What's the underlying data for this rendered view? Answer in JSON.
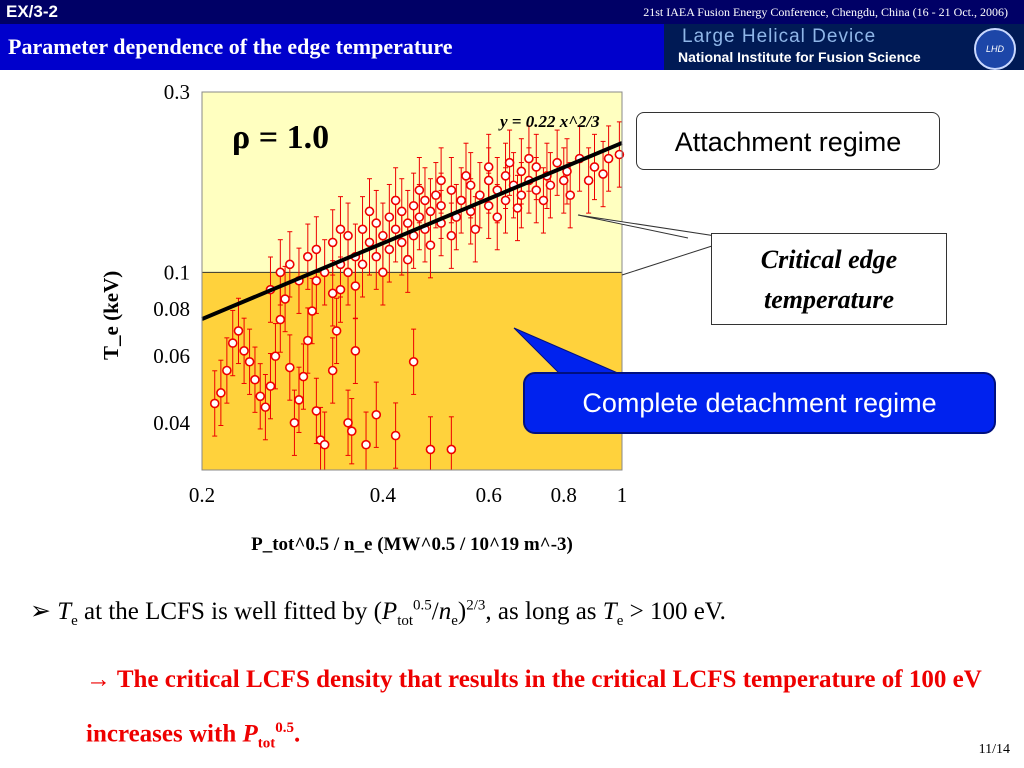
{
  "header": {
    "slide_id": "EX/3-2",
    "conference": "21st IAEA Fusion Energy Conference, Chengdu, China (16 - 21 Oct., 2006)",
    "title": "Parameter dependence of the edge temperature",
    "logo_line1": "Large Helical Device",
    "logo_line2": "National Institute for Fusion Science"
  },
  "colors": {
    "header_bar": "#000066",
    "title_bar": "#0000cc",
    "attachment_zone": "#ffffc0",
    "detachment_zone": "#ffd23c",
    "data_points": "#ee0000",
    "fit_line": "#000000",
    "callout_blue": "#0022ee"
  },
  "chart_data": {
    "type": "scatter",
    "x_scale": "log",
    "y_scale": "log",
    "xlim": [
      0.2,
      1.0
    ],
    "ylim": [
      0.03,
      0.3
    ],
    "x_ticks": [
      0.2,
      0.4,
      0.6,
      0.8,
      1
    ],
    "x_tick_labels": [
      "0.2",
      "0.4",
      "0.6",
      "0.8",
      "1"
    ],
    "y_ticks": [
      0.04,
      0.06,
      0.08,
      0.1,
      0.3
    ],
    "y_tick_labels": [
      "0.04",
      "0.06",
      "0.08",
      "0.1",
      "0.3"
    ],
    "xlabel": "P_tot^0.5 / n_e (MW^0.5 / 10^19 m^-3)",
    "ylabel": "T_e (keV)",
    "rho_label": "ρ = 1.0",
    "fit_label": "y = 0.22 x^2/3",
    "fit": {
      "coefficient": 0.22,
      "exponent": 0.6667
    },
    "threshold_y": 0.1,
    "points": [
      [
        0.21,
        0.045
      ],
      [
        0.215,
        0.048
      ],
      [
        0.22,
        0.055
      ],
      [
        0.225,
        0.065
      ],
      [
        0.23,
        0.07
      ],
      [
        0.235,
        0.062
      ],
      [
        0.24,
        0.058
      ],
      [
        0.245,
        0.052
      ],
      [
        0.25,
        0.047
      ],
      [
        0.255,
        0.044
      ],
      [
        0.26,
        0.05
      ],
      [
        0.265,
        0.06
      ],
      [
        0.27,
        0.075
      ],
      [
        0.275,
        0.085
      ],
      [
        0.28,
        0.056
      ],
      [
        0.285,
        0.04
      ],
      [
        0.29,
        0.046
      ],
      [
        0.295,
        0.053
      ],
      [
        0.3,
        0.066
      ],
      [
        0.305,
        0.079
      ],
      [
        0.31,
        0.043
      ],
      [
        0.315,
        0.036
      ],
      [
        0.32,
        0.035
      ],
      [
        0.33,
        0.055
      ],
      [
        0.335,
        0.07
      ],
      [
        0.34,
        0.09
      ],
      [
        0.35,
        0.04
      ],
      [
        0.355,
        0.038
      ],
      [
        0.36,
        0.062
      ],
      [
        0.375,
        0.035
      ],
      [
        0.39,
        0.042
      ],
      [
        0.42,
        0.037
      ],
      [
        0.45,
        0.058
      ],
      [
        0.48,
        0.034
      ],
      [
        0.52,
        0.034
      ],
      [
        0.26,
        0.09
      ],
      [
        0.27,
        0.1
      ],
      [
        0.28,
        0.105
      ],
      [
        0.29,
        0.095
      ],
      [
        0.3,
        0.11
      ],
      [
        0.31,
        0.115
      ],
      [
        0.32,
        0.1
      ],
      [
        0.33,
        0.12
      ],
      [
        0.34,
        0.105
      ],
      [
        0.35,
        0.125
      ],
      [
        0.36,
        0.11
      ],
      [
        0.37,
        0.13
      ],
      [
        0.38,
        0.12
      ],
      [
        0.39,
        0.135
      ],
      [
        0.4,
        0.125
      ],
      [
        0.41,
        0.14
      ],
      [
        0.42,
        0.13
      ],
      [
        0.43,
        0.145
      ],
      [
        0.44,
        0.135
      ],
      [
        0.45,
        0.15
      ],
      [
        0.46,
        0.14
      ],
      [
        0.47,
        0.155
      ],
      [
        0.48,
        0.145
      ],
      [
        0.49,
        0.16
      ],
      [
        0.5,
        0.15
      ],
      [
        0.52,
        0.165
      ],
      [
        0.54,
        0.155
      ],
      [
        0.56,
        0.17
      ],
      [
        0.58,
        0.16
      ],
      [
        0.6,
        0.175
      ],
      [
        0.62,
        0.165
      ],
      [
        0.64,
        0.18
      ],
      [
        0.66,
        0.17
      ],
      [
        0.68,
        0.185
      ],
      [
        0.7,
        0.175
      ],
      [
        0.72,
        0.19
      ],
      [
        0.75,
        0.18
      ],
      [
        0.78,
        0.195
      ],
      [
        0.81,
        0.185
      ],
      [
        0.85,
        0.2
      ],
      [
        0.9,
        0.19
      ],
      [
        0.95,
        0.2
      ],
      [
        0.99,
        0.205
      ],
      [
        0.35,
        0.1
      ],
      [
        0.37,
        0.105
      ],
      [
        0.39,
        0.11
      ],
      [
        0.41,
        0.115
      ],
      [
        0.43,
        0.12
      ],
      [
        0.45,
        0.125
      ],
      [
        0.47,
        0.13
      ],
      [
        0.5,
        0.135
      ],
      [
        0.53,
        0.14
      ],
      [
        0.56,
        0.145
      ],
      [
        0.6,
        0.15
      ],
      [
        0.64,
        0.155
      ],
      [
        0.68,
        0.16
      ],
      [
        0.72,
        0.165
      ],
      [
        0.76,
        0.17
      ],
      [
        0.8,
        0.175
      ],
      [
        0.34,
        0.13
      ],
      [
        0.38,
        0.145
      ],
      [
        0.42,
        0.155
      ],
      [
        0.46,
        0.165
      ],
      [
        0.5,
        0.175
      ],
      [
        0.55,
        0.18
      ],
      [
        0.6,
        0.19
      ],
      [
        0.65,
        0.195
      ],
      [
        0.7,
        0.2
      ],
      [
        0.31,
        0.095
      ],
      [
        0.33,
        0.088
      ],
      [
        0.36,
        0.092
      ],
      [
        0.4,
        0.1
      ],
      [
        0.44,
        0.108
      ],
      [
        0.48,
        0.118
      ],
      [
        0.52,
        0.125
      ],
      [
        0.57,
        0.13
      ],
      [
        0.62,
        0.14
      ],
      [
        0.67,
        0.148
      ],
      [
        0.74,
        0.155
      ],
      [
        0.82,
        0.16
      ],
      [
        0.88,
        0.175
      ],
      [
        0.93,
        0.182
      ]
    ]
  },
  "callouts": {
    "attachment": "Attachment regime",
    "critical_line1": "Critical edge",
    "critical_line2": "temperature",
    "detachment": "Complete detachment regime"
  },
  "bullets": {
    "b1_a": "T",
    "b1_a_sub": "e",
    "b1_b": " at the LCFS is well fitted by (",
    "b1_c": "P",
    "b1_c_sub": "tot",
    "b1_c_sup": "0.5",
    "b1_d": "/",
    "b1_e": "n",
    "b1_e_sub": "e",
    "b1_f": ")",
    "b1_f_sup": "2/3",
    "b1_g": ", as long as ",
    "b1_h": "T",
    "b1_h_sub": "e",
    "b1_i": " > 100 eV.",
    "b2_arrow": "→",
    "b2_text": "The critical LCFS density that results in the critical LCFS temperature of 100 eV increases with ",
    "b2_p": "P",
    "b2_sub": "tot",
    "b2_sup": "0.5",
    "b2_end": "."
  },
  "page_number": "11/14"
}
